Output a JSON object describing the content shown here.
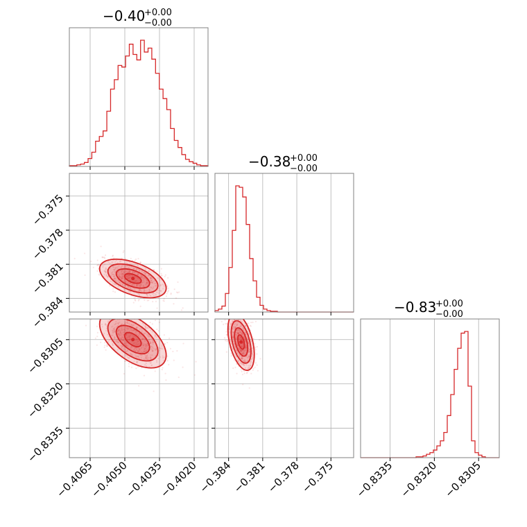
{
  "chart_data": {
    "type": "corner",
    "color": "#d62728",
    "grid": true,
    "parameters": [
      {
        "title_value": "−0.40",
        "title_plus": "+0.00",
        "title_minus": "−0.00",
        "range": [
          -0.4074,
          -0.4014
        ]
      },
      {
        "title_value": "−0.38",
        "title_plus": "+0.00",
        "title_minus": "−0.00",
        "range": [
          -0.3852,
          -0.373
        ]
      },
      {
        "title_value": "−0.83",
        "title_plus": "+0.00",
        "title_minus": "−0.00",
        "range": [
          -0.8345,
          -0.8298
        ]
      }
    ],
    "ticks": {
      "x0": {
        "values": [
          -0.4065,
          -0.405,
          -0.4035,
          -0.402
        ],
        "labels": [
          "−0.4065",
          "−0.4050",
          "−0.4035",
          "−0.4020"
        ]
      },
      "x1": {
        "values": [
          -0.384,
          -0.381,
          -0.378,
          -0.375
        ],
        "labels": [
          "−0.384",
          "−0.381",
          "−0.378",
          "−0.375"
        ]
      },
      "x2": {
        "values": [
          -0.8335,
          -0.832,
          -0.8305
        ],
        "labels": [
          "−0.8335",
          "−0.8320",
          "−0.8305"
        ]
      },
      "y1": {
        "values": [
          -0.375,
          -0.378,
          -0.381,
          -0.384
        ],
        "labels": [
          "−0.375",
          "−0.378",
          "−0.381",
          "−0.384"
        ]
      },
      "y2": {
        "values": [
          -0.8305,
          -0.832,
          -0.8335
        ],
        "labels": [
          "−0.8305",
          "−0.8320",
          "−0.8335"
        ]
      }
    },
    "histograms": [
      {
        "param": 0,
        "counts": [
          1,
          1,
          2,
          3,
          5,
          10,
          18,
          32,
          38,
          45,
          70,
          98,
          110,
          128,
          126,
          140,
          155,
          142,
          135,
          160,
          145,
          150,
          136,
          118,
          98,
          86,
          72,
          48,
          33,
          24,
          15,
          9,
          6,
          4,
          2,
          1,
          1
        ]
      },
      {
        "param": 1,
        "counts": [
          2,
          4,
          8,
          25,
          60,
          110,
          170,
          168,
          155,
          118,
          72,
          42,
          20,
          9,
          4,
          2,
          1,
          1,
          0,
          0,
          0,
          0,
          0,
          0,
          0,
          0,
          0,
          0,
          0,
          0,
          0,
          0,
          0,
          0,
          0,
          0,
          0,
          0,
          0,
          0
        ]
      },
      {
        "param": 2,
        "counts": [
          0,
          0,
          0,
          0,
          0,
          0,
          0,
          0,
          0,
          0,
          0,
          0,
          0,
          0,
          0,
          0,
          1,
          1,
          2,
          4,
          6,
          9,
          14,
          20,
          30,
          50,
          75,
          105,
          130,
          148,
          150,
          85,
          20,
          6,
          3,
          1,
          0,
          0,
          0,
          0
        ]
      }
    ],
    "joint": [
      {
        "x": 0,
        "y": 1,
        "center": [
          -0.40465,
          -0.38225
        ],
        "sigma": [
          0.00072,
          0.00085
        ],
        "rho": -0.5
      },
      {
        "x": 0,
        "y": 2,
        "center": [
          -0.40465,
          -0.8305
        ],
        "sigma": [
          0.00072,
          0.00048
        ],
        "rho": -0.55
      },
      {
        "x": 1,
        "y": 2,
        "center": [
          -0.3829,
          -0.83058
        ],
        "sigma": [
          0.00058,
          0.00048
        ],
        "rho": -0.45
      }
    ]
  }
}
